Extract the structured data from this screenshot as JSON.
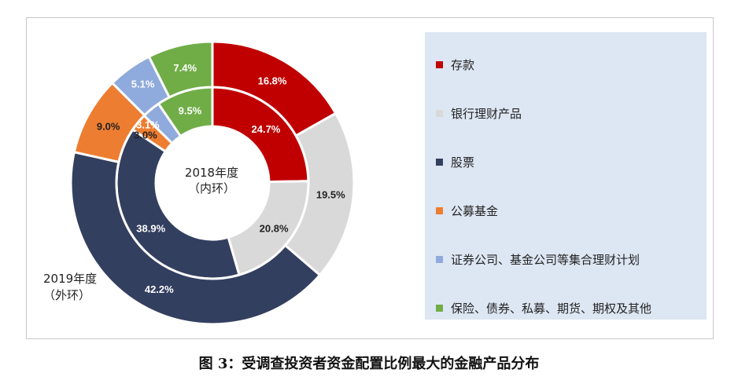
{
  "chart_data": {
    "type": "pie",
    "variant": "nested-donut",
    "categories": [
      "存款",
      "银行理财产品",
      "股票",
      "公募基金",
      "证券公司、基金公司等集合理财计划",
      "保险、债券、私募、期货、期权及其他"
    ],
    "colors": [
      "#c00000",
      "#d9d9d9",
      "#333f5f",
      "#ed7d31",
      "#8faadc",
      "#70ad47"
    ],
    "label_colors": [
      "#ffffff",
      "#222222",
      "#ffffff",
      "#222222",
      "#ffffff",
      "#ffffff"
    ],
    "series": [
      {
        "name": "2018年度（内环）",
        "ring": "inner",
        "values": [
          24.7,
          20.8,
          38.9,
          3.0,
          3.1,
          9.5
        ],
        "labels": [
          "24.7%",
          "20.8%",
          "38.9%",
          "3.0%",
          "3.1%",
          "9.5%"
        ]
      },
      {
        "name": "2019年度（外环）",
        "ring": "outer",
        "values": [
          16.8,
          19.5,
          42.2,
          9.0,
          5.1,
          7.4
        ],
        "labels": [
          "16.8%",
          "19.5%",
          "42.2%",
          "9.0%",
          "5.1%",
          "7.4%"
        ]
      }
    ],
    "inner_ring_label": {
      "line1": "2018年度",
      "line2": "（内环）"
    },
    "outer_ring_label": {
      "line1": "2019年度",
      "line2": "（外环）"
    },
    "legend_position": "right"
  },
  "caption": "图 3：受调查投资者资金配置比例最大的金融产品分布"
}
